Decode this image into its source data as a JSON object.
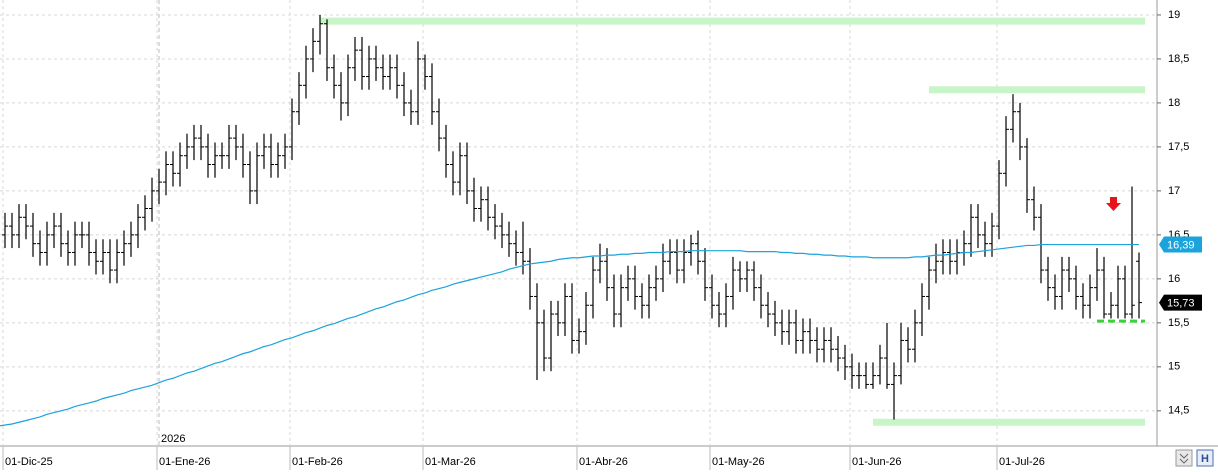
{
  "chart_data": {
    "type": "ohlc",
    "categories": [
      "01-Dic-25",
      null,
      null,
      null,
      null,
      null,
      null,
      null,
      null,
      null,
      null,
      null,
      null,
      null,
      null,
      null,
      null,
      null,
      null,
      null,
      null,
      null,
      "01-Ene-26",
      null,
      null,
      null,
      null,
      null,
      null,
      null,
      null,
      null,
      null,
      null,
      null,
      null,
      null,
      null,
      null,
      null,
      null,
      "01-Feb-26",
      null,
      null,
      null,
      null,
      null,
      null,
      null,
      null,
      null,
      null,
      null,
      null,
      null,
      null,
      null,
      null,
      null,
      null,
      "01-Mar-26",
      null,
      null,
      null,
      null,
      null,
      null,
      null,
      null,
      null,
      null,
      null,
      null,
      null,
      null,
      null,
      null,
      null,
      null,
      null,
      null,
      null,
      "01-Abr-26",
      null,
      null,
      null,
      null,
      null,
      null,
      null,
      null,
      null,
      null,
      null,
      null,
      null,
      null,
      null,
      null,
      null,
      null,
      "01-May-26",
      null,
      null,
      null,
      null,
      null,
      null,
      null,
      null,
      null,
      null,
      null,
      null,
      null,
      null,
      null,
      null,
      null,
      null,
      null,
      "01-Jun-26",
      null,
      null,
      null,
      null,
      null,
      null,
      null,
      null,
      null,
      null,
      null,
      null,
      null,
      null,
      null,
      null,
      null,
      null,
      null,
      null,
      "01-Jul-26",
      null,
      null,
      null,
      null,
      null,
      null,
      null,
      null,
      null,
      null,
      null,
      null,
      null,
      null,
      null,
      null,
      null,
      null,
      null
    ],
    "year_label": "2026",
    "bars": [
      [
        16.5,
        16.75,
        16.35,
        16.6
      ],
      [
        16.6,
        16.75,
        16.35,
        16.5
      ],
      [
        16.5,
        16.85,
        16.35,
        16.7
      ],
      [
        16.7,
        16.85,
        16.45,
        16.6
      ],
      [
        16.6,
        16.75,
        16.25,
        16.4
      ],
      [
        16.4,
        16.55,
        16.15,
        16.3
      ],
      [
        16.3,
        16.65,
        16.15,
        16.5
      ],
      [
        16.5,
        16.75,
        16.35,
        16.6
      ],
      [
        16.6,
        16.75,
        16.25,
        16.4
      ],
      [
        16.4,
        16.55,
        16.15,
        16.3
      ],
      [
        16.3,
        16.65,
        16.15,
        16.5
      ],
      [
        16.5,
        16.65,
        16.35,
        16.5
      ],
      [
        16.5,
        16.65,
        16.15,
        16.3
      ],
      [
        16.3,
        16.45,
        16.05,
        16.2
      ],
      [
        16.2,
        16.45,
        16.05,
        16.3
      ],
      [
        16.3,
        16.45,
        15.95,
        16.1
      ],
      [
        16.1,
        16.45,
        15.95,
        16.3
      ],
      [
        16.3,
        16.55,
        16.15,
        16.4
      ],
      [
        16.4,
        16.65,
        16.25,
        16.5
      ],
      [
        16.5,
        16.85,
        16.35,
        16.7
      ],
      [
        16.7,
        16.95,
        16.55,
        16.8
      ],
      [
        16.8,
        17.15,
        16.65,
        17.0
      ],
      [
        17.0,
        17.25,
        16.85,
        17.1
      ],
      [
        17.1,
        17.45,
        16.95,
        17.3
      ],
      [
        17.3,
        17.45,
        17.05,
        17.2
      ],
      [
        17.2,
        17.55,
        17.05,
        17.4
      ],
      [
        17.4,
        17.65,
        17.25,
        17.5
      ],
      [
        17.5,
        17.75,
        17.35,
        17.6
      ],
      [
        17.6,
        17.75,
        17.35,
        17.5
      ],
      [
        17.5,
        17.65,
        17.15,
        17.3
      ],
      [
        17.3,
        17.55,
        17.15,
        17.4
      ],
      [
        17.4,
        17.55,
        17.25,
        17.4
      ],
      [
        17.4,
        17.75,
        17.25,
        17.6
      ],
      [
        17.6,
        17.75,
        17.35,
        17.5
      ],
      [
        17.5,
        17.65,
        17.15,
        17.3
      ],
      [
        17.3,
        17.45,
        16.85,
        17.0
      ],
      [
        17.0,
        17.55,
        16.85,
        17.4
      ],
      [
        17.4,
        17.65,
        17.25,
        17.5
      ],
      [
        17.5,
        17.65,
        17.15,
        17.3
      ],
      [
        17.3,
        17.55,
        17.15,
        17.4
      ],
      [
        17.4,
        17.65,
        17.25,
        17.5
      ],
      [
        17.5,
        18.05,
        17.35,
        17.9
      ],
      [
        17.9,
        18.35,
        17.75,
        18.2
      ],
      [
        18.2,
        18.65,
        18.05,
        18.5
      ],
      [
        18.5,
        18.85,
        18.35,
        18.7
      ],
      [
        18.7,
        19.0,
        18.55,
        18.9
      ],
      [
        18.9,
        18.95,
        18.25,
        18.4
      ],
      [
        18.4,
        18.55,
        18.05,
        18.2
      ],
      [
        18.2,
        18.35,
        17.8,
        18.0
      ],
      [
        18.0,
        18.55,
        17.85,
        18.4
      ],
      [
        18.4,
        18.75,
        18.25,
        18.6
      ],
      [
        18.6,
        18.75,
        18.15,
        18.3
      ],
      [
        18.3,
        18.65,
        18.15,
        18.5
      ],
      [
        18.5,
        18.65,
        18.25,
        18.4
      ],
      [
        18.4,
        18.55,
        18.15,
        18.3
      ],
      [
        18.3,
        18.55,
        18.15,
        18.4
      ],
      [
        18.4,
        18.55,
        18.05,
        18.2
      ],
      [
        18.2,
        18.35,
        17.85,
        18.0
      ],
      [
        18.0,
        18.15,
        17.75,
        17.9
      ],
      [
        17.9,
        18.7,
        17.75,
        18.5
      ],
      [
        18.5,
        18.55,
        18.15,
        18.3
      ],
      [
        18.3,
        18.45,
        17.75,
        17.9
      ],
      [
        17.9,
        18.05,
        17.45,
        17.6
      ],
      [
        17.6,
        17.75,
        17.15,
        17.3
      ],
      [
        17.3,
        17.45,
        16.95,
        17.1
      ],
      [
        17.1,
        17.55,
        16.95,
        17.4
      ],
      [
        17.4,
        17.55,
        16.85,
        17.0
      ],
      [
        17.0,
        17.15,
        16.65,
        16.8
      ],
      [
        16.8,
        17.05,
        16.65,
        16.9
      ],
      [
        16.9,
        17.05,
        16.55,
        16.7
      ],
      [
        16.7,
        16.85,
        16.45,
        16.6
      ],
      [
        16.6,
        16.75,
        16.35,
        16.5
      ],
      [
        16.5,
        16.65,
        16.25,
        16.4
      ],
      [
        16.4,
        16.55,
        16.15,
        16.3
      ],
      [
        16.3,
        16.65,
        16.05,
        16.2
      ],
      [
        16.2,
        16.35,
        15.65,
        15.8
      ],
      [
        15.8,
        15.95,
        14.85,
        15.5
      ],
      [
        15.5,
        15.65,
        14.95,
        15.1
      ],
      [
        15.1,
        15.75,
        14.95,
        15.6
      ],
      [
        15.6,
        15.75,
        15.35,
        15.5
      ],
      [
        15.5,
        15.95,
        15.35,
        15.8
      ],
      [
        15.8,
        15.95,
        15.15,
        15.3
      ],
      [
        15.3,
        15.55,
        15.15,
        15.4
      ],
      [
        15.4,
        15.85,
        15.25,
        15.7
      ],
      [
        15.7,
        16.25,
        15.55,
        16.1
      ],
      [
        16.1,
        16.4,
        15.95,
        16.2
      ],
      [
        16.2,
        16.35,
        15.75,
        15.9
      ],
      [
        15.9,
        16.05,
        15.45,
        15.6
      ],
      [
        15.6,
        16.05,
        15.45,
        15.9
      ],
      [
        15.9,
        16.15,
        15.75,
        16.0
      ],
      [
        16.0,
        16.15,
        15.65,
        15.8
      ],
      [
        15.8,
        15.95,
        15.55,
        15.7
      ],
      [
        15.7,
        16.05,
        15.55,
        15.9
      ],
      [
        15.9,
        16.15,
        15.75,
        16.0
      ],
      [
        16.0,
        16.4,
        15.85,
        16.2
      ],
      [
        16.2,
        16.45,
        16.05,
        16.3
      ],
      [
        16.3,
        16.45,
        15.95,
        16.1
      ],
      [
        16.1,
        16.45,
        15.95,
        16.3
      ],
      [
        16.3,
        16.5,
        16.15,
        16.4
      ],
      [
        16.4,
        16.55,
        16.05,
        16.2
      ],
      [
        16.2,
        16.35,
        15.75,
        15.9
      ],
      [
        15.9,
        16.05,
        15.55,
        15.7
      ],
      [
        15.7,
        15.85,
        15.45,
        15.6
      ],
      [
        15.6,
        15.95,
        15.45,
        15.8
      ],
      [
        15.8,
        16.25,
        15.65,
        16.1
      ],
      [
        16.1,
        16.2,
        15.85,
        16.0
      ],
      [
        16.0,
        16.2,
        15.85,
        16.1
      ],
      [
        16.1,
        16.2,
        15.75,
        15.9
      ],
      [
        15.9,
        16.05,
        15.55,
        15.7
      ],
      [
        15.7,
        15.85,
        15.45,
        15.6
      ],
      [
        15.6,
        15.75,
        15.35,
        15.5
      ],
      [
        15.5,
        15.65,
        15.25,
        15.4
      ],
      [
        15.4,
        15.65,
        15.25,
        15.5
      ],
      [
        15.5,
        15.65,
        15.15,
        15.3
      ],
      [
        15.3,
        15.55,
        15.15,
        15.4
      ],
      [
        15.4,
        15.55,
        15.15,
        15.3
      ],
      [
        15.3,
        15.45,
        15.05,
        15.2
      ],
      [
        15.2,
        15.45,
        15.05,
        15.3
      ],
      [
        15.3,
        15.45,
        15.05,
        15.2
      ],
      [
        15.2,
        15.35,
        14.95,
        15.1
      ],
      [
        15.1,
        15.25,
        14.85,
        15.0
      ],
      [
        15.0,
        15.15,
        14.75,
        14.9
      ],
      [
        14.9,
        15.05,
        14.75,
        14.9
      ],
      [
        14.9,
        15.05,
        14.75,
        14.8
      ],
      [
        14.8,
        15.05,
        14.75,
        14.9
      ],
      [
        14.9,
        15.25,
        14.8,
        15.1
      ],
      [
        15.1,
        15.5,
        14.75,
        14.8
      ],
      [
        14.8,
        15.05,
        14.4,
        14.9
      ],
      [
        14.9,
        15.5,
        14.8,
        15.3
      ],
      [
        15.3,
        15.45,
        15.05,
        15.2
      ],
      [
        15.2,
        15.65,
        15.05,
        15.5
      ],
      [
        15.5,
        15.95,
        15.35,
        15.8
      ],
      [
        15.8,
        16.25,
        15.65,
        16.1
      ],
      [
        16.1,
        16.4,
        15.95,
        16.2
      ],
      [
        16.2,
        16.45,
        16.05,
        16.3
      ],
      [
        16.3,
        16.45,
        16.05,
        16.2
      ],
      [
        16.2,
        16.45,
        16.05,
        16.3
      ],
      [
        16.3,
        16.55,
        16.15,
        16.4
      ],
      [
        16.4,
        16.85,
        16.25,
        16.7
      ],
      [
        16.7,
        16.85,
        16.35,
        16.5
      ],
      [
        16.5,
        16.65,
        16.25,
        16.4
      ],
      [
        16.4,
        16.75,
        16.25,
        16.6
      ],
      [
        16.6,
        17.35,
        16.45,
        17.2
      ],
      [
        17.2,
        17.85,
        17.05,
        17.7
      ],
      [
        17.7,
        18.1,
        17.55,
        17.9
      ],
      [
        17.9,
        18.0,
        17.35,
        17.5
      ],
      [
        17.5,
        17.6,
        16.75,
        16.9
      ],
      [
        16.9,
        17.05,
        16.55,
        16.7
      ],
      [
        16.7,
        16.85,
        15.95,
        16.1
      ],
      [
        16.1,
        16.25,
        15.75,
        15.9
      ],
      [
        15.9,
        16.05,
        15.65,
        15.8
      ],
      [
        15.8,
        16.25,
        15.65,
        16.1
      ],
      [
        16.1,
        16.25,
        15.85,
        16.0
      ],
      [
        16.0,
        16.15,
        15.65,
        15.8
      ],
      [
        15.8,
        15.95,
        15.55,
        15.7
      ],
      [
        15.7,
        16.05,
        15.55,
        15.9
      ],
      [
        15.9,
        16.35,
        15.75,
        16.1
      ],
      [
        16.1,
        16.25,
        15.55,
        15.6
      ],
      [
        15.6,
        15.85,
        15.55,
        15.7
      ],
      [
        15.7,
        16.15,
        15.55,
        16.0
      ],
      [
        16.0,
        16.15,
        15.55,
        15.6
      ],
      [
        15.6,
        17.05,
        15.55,
        15.7
      ],
      [
        16.2,
        16.3,
        15.55,
        15.73
      ]
    ],
    "bar_color": "#000000",
    "moving_average": {
      "color": "#1ba3dc",
      "values": [
        14.33,
        14.35,
        14.37,
        14.39,
        14.41,
        14.43,
        14.46,
        14.48,
        14.5,
        14.52,
        14.55,
        14.57,
        14.59,
        14.61,
        14.64,
        14.66,
        14.68,
        14.7,
        14.73,
        14.75,
        14.77,
        14.79,
        14.82,
        14.85,
        14.87,
        14.9,
        14.93,
        14.95,
        14.98,
        15.01,
        15.04,
        15.06,
        15.09,
        15.12,
        15.15,
        15.17,
        15.2,
        15.23,
        15.25,
        15.28,
        15.31,
        15.33,
        15.36,
        15.39,
        15.41,
        15.44,
        15.47,
        15.49,
        15.52,
        15.55,
        15.57,
        15.6,
        15.63,
        15.66,
        15.68,
        15.71,
        15.74,
        15.76,
        15.79,
        15.82,
        15.84,
        15.87,
        15.89,
        15.91,
        15.94,
        15.96,
        15.98,
        16.0,
        16.02,
        16.04,
        16.06,
        16.08,
        16.11,
        16.13,
        16.15,
        16.17,
        16.18,
        16.19,
        16.2,
        16.22,
        16.23,
        16.24,
        16.24,
        16.25,
        16.26,
        16.26,
        16.27,
        16.27,
        16.28,
        16.28,
        16.29,
        16.29,
        16.3,
        16.3,
        16.3,
        16.31,
        16.31,
        16.31,
        16.32,
        16.32,
        16.32,
        16.32,
        16.32,
        16.32,
        16.32,
        16.32,
        16.31,
        16.31,
        16.31,
        16.31,
        16.31,
        16.3,
        16.3,
        16.29,
        16.29,
        16.28,
        16.28,
        16.27,
        16.27,
        16.26,
        16.26,
        16.25,
        16.25,
        16.25,
        16.24,
        16.24,
        16.24,
        16.24,
        16.24,
        16.24,
        16.25,
        16.25,
        16.26,
        16.27,
        16.27,
        16.28,
        16.29,
        16.3,
        16.3,
        16.31,
        16.32,
        16.33,
        16.34,
        16.35,
        16.36,
        16.37,
        16.38,
        16.38,
        16.39,
        16.39,
        16.39,
        16.39,
        16.39,
        16.39,
        16.39,
        16.39,
        16.39,
        16.39,
        16.39,
        16.39,
        16.39,
        16.39,
        16.39
      ]
    },
    "levels": [
      {
        "value": 18.93,
        "xrange": [
          45,
          162
        ],
        "color": "#c8f5c8",
        "dashed": false
      },
      {
        "value": 18.15,
        "xrange": [
          132,
          162
        ],
        "color": "#c8f5c8",
        "dashed": false
      },
      {
        "value": 14.37,
        "xrange": [
          124,
          162
        ],
        "color": "#c8f5c8",
        "dashed": false
      },
      {
        "value": 15.52,
        "xrange": [
          156,
          162
        ],
        "color": "#3ad23a",
        "dashed": true
      }
    ],
    "price_labels": [
      {
        "value": 16.39,
        "label": "16,39",
        "color": "#1ba3dc"
      },
      {
        "value": 15.73,
        "label": "15,73",
        "color": "#000000"
      }
    ],
    "ylim": [
      14.1,
      19.17
    ],
    "yticks": [
      {
        "value": 14.5,
        "label": "14,5"
      },
      15,
      {
        "value": 15.5,
        "label": "15,5"
      },
      16,
      {
        "value": 16.5,
        "label": "16,5"
      },
      17,
      {
        "value": 17.5,
        "label": "17,5"
      },
      18,
      {
        "value": 18.5,
        "label": "18,5"
      },
      19
    ],
    "grid": true
  }
}
